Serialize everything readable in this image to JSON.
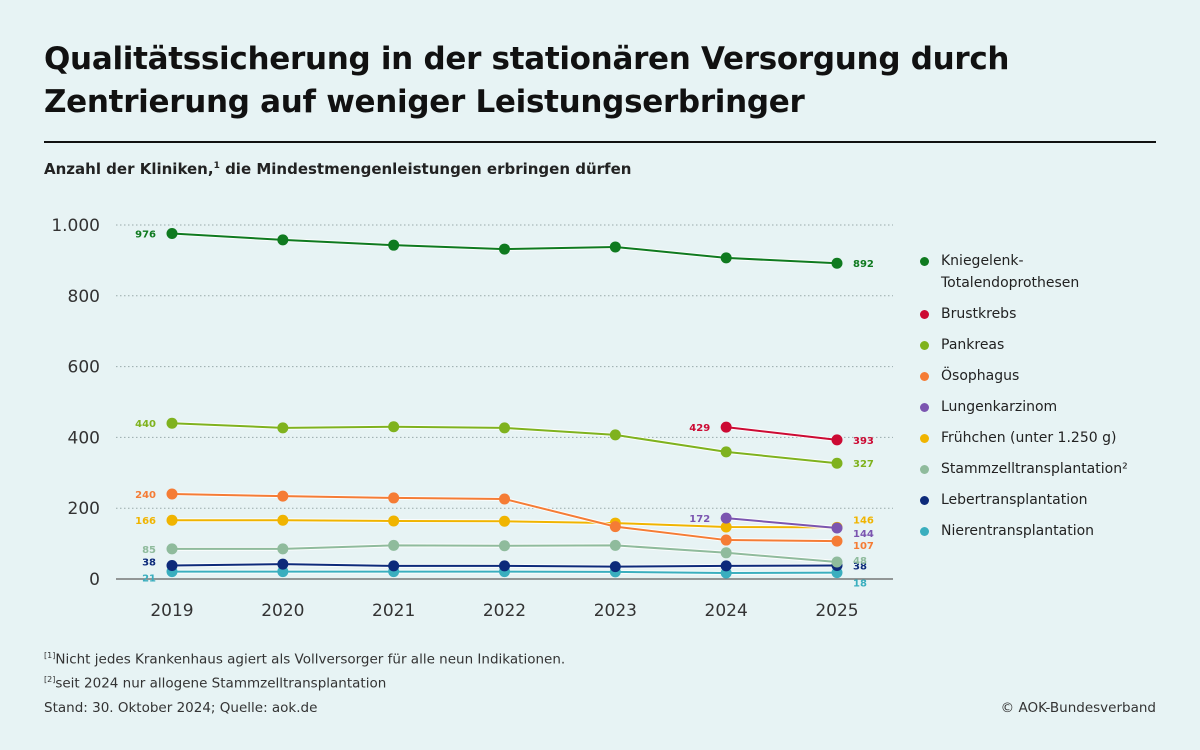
{
  "header": {
    "title": "Qualitätssicherung in der stationären Versorgung durch Zentrierung auf weniger Leistungserbringer",
    "subtitle_pre": "Anzahl der Kliniken,",
    "subtitle_sup": "1",
    "subtitle_post": " die Mindestmengenleistungen erbringen dürfen"
  },
  "footer": {
    "note1_mark": "[1]",
    "note1": "Nicht jedes Krankenhaus agiert als Vollversorger für alle neun Indikationen.",
    "note2_mark": "[2]",
    "note2": "seit 2024 nur allogene Stammzelltransplantation",
    "source": "Stand: 30. Oktober 2024; Quelle: aok.de",
    "copyright": "© AOK-Bundesverband"
  },
  "chart_data": {
    "type": "line",
    "title": "Anzahl der Kliniken, die Mindestmengenleistungen erbringen dürfen",
    "xlabel": "",
    "ylabel": "",
    "x": [
      "2019",
      "2020",
      "2021",
      "2022",
      "2023",
      "2024",
      "2025"
    ],
    "ylim": [
      0,
      1000
    ],
    "yticks": [
      0,
      200,
      400,
      600,
      800,
      1000
    ],
    "ytick_labels": [
      "0",
      "200",
      "400",
      "600",
      "800",
      "1.000"
    ],
    "grid": "horizontal-dotted",
    "legend_position": "right",
    "series": [
      {
        "name": "Kniegelenk-Totalendoprothesen",
        "legend_lines": [
          "Kniegelenk-",
          "Totalendoprothesen"
        ],
        "color": "#0f7a1f",
        "values": [
          976,
          958,
          943,
          932,
          938,
          907,
          892
        ],
        "start_label": "976",
        "end_label": "892"
      },
      {
        "name": "Brustkrebs",
        "legend_lines": [
          "Brustkrebs"
        ],
        "color": "#cc0a33",
        "values": [
          null,
          null,
          null,
          null,
          null,
          429,
          393
        ],
        "start_label": "429",
        "end_label": "393"
      },
      {
        "name": "Pankreas",
        "legend_lines": [
          "Pankreas"
        ],
        "color": "#7fb21e",
        "values": [
          440,
          427,
          430,
          427,
          407,
          359,
          327
        ],
        "start_label": "440",
        "end_label": "327"
      },
      {
        "name": "Ösophagus",
        "legend_lines": [
          "Ösophagus"
        ],
        "color": "#f57c35",
        "values": [
          240,
          234,
          229,
          226,
          148,
          110,
          107
        ],
        "start_label": "240",
        "end_label": "107"
      },
      {
        "name": "Lungenkarzinom",
        "legend_lines": [
          "Lungenkarzinom"
        ],
        "color": "#7b55b0",
        "values": [
          null,
          null,
          null,
          null,
          null,
          172,
          144
        ],
        "start_label": "172",
        "end_label": "144"
      },
      {
        "name": "Frühchen (unter 1.250 g)",
        "legend_lines": [
          "Frühchen (unter 1.250 g)"
        ],
        "color": "#f0b400",
        "values": [
          166,
          166,
          164,
          163,
          158,
          147,
          146
        ],
        "start_label": "166",
        "end_label": "146"
      },
      {
        "name": "Stammzelltransplantation²",
        "legend_lines": [
          "Stammzelltransplantation²"
        ],
        "color": "#8fbb9c",
        "values": [
          85,
          85,
          95,
          94,
          95,
          74,
          48
        ],
        "start_label": "85",
        "end_label": "48"
      },
      {
        "name": "Lebertransplantation",
        "legend_lines": [
          "Lebertransplantation"
        ],
        "color": "#0d2a7a",
        "values": [
          38,
          42,
          37,
          37,
          35,
          37,
          38
        ],
        "start_label": "38",
        "end_label": "38"
      },
      {
        "name": "Nierentransplantation",
        "legend_lines": [
          "Nierentransplantation"
        ],
        "color": "#3aaebe",
        "values": [
          21,
          21,
          21,
          21,
          20,
          17,
          18
        ],
        "start_label": "21",
        "end_label": "18"
      }
    ]
  }
}
